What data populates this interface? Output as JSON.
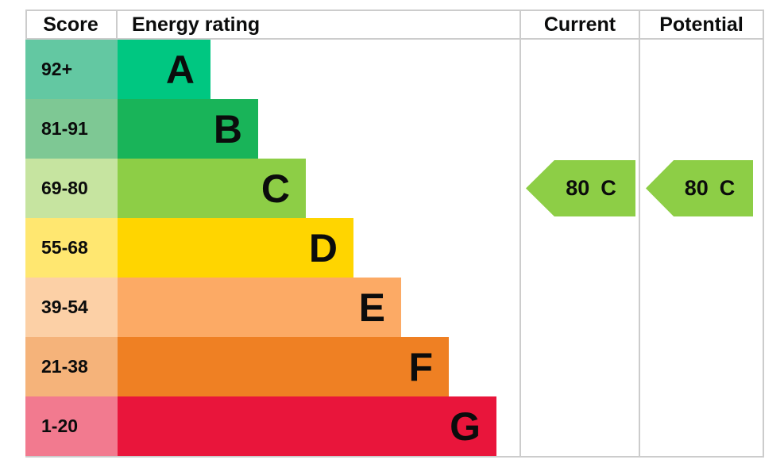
{
  "chart_data": {
    "type": "bar",
    "columns": {
      "score": "Score",
      "rating": "Energy rating",
      "current": "Current",
      "potential": "Potential"
    },
    "bands": [
      {
        "letter": "A",
        "score_range": "92+",
        "color": "#00c781",
        "score_color": "#63c8a2",
        "relative_length": 1
      },
      {
        "letter": "B",
        "score_range": "81-91",
        "color": "#19b459",
        "score_color": "#7ec894",
        "relative_length": 2
      },
      {
        "letter": "C",
        "score_range": "69-80",
        "color": "#8dce46",
        "score_color": "#c6e4a0",
        "relative_length": 3
      },
      {
        "letter": "D",
        "score_range": "55-68",
        "color": "#ffd500",
        "score_color": "#ffe770",
        "relative_length": 4
      },
      {
        "letter": "E",
        "score_range": "39-54",
        "color": "#fcaa65",
        "score_color": "#fcd0a6",
        "relative_length": 5
      },
      {
        "letter": "F",
        "score_range": "21-38",
        "color": "#ef8023",
        "score_color": "#f5b37a",
        "relative_length": 6
      },
      {
        "letter": "G",
        "score_range": "1-20",
        "color": "#e9153b",
        "score_color": "#f27a8f",
        "relative_length": 7
      }
    ],
    "current": {
      "value": "80",
      "band": "C",
      "color": "#8dce46"
    },
    "potential": {
      "value": "80",
      "band": "C",
      "color": "#8dce46"
    }
  },
  "colors": {
    "border": "#cccccc",
    "text": "#0b0c0c",
    "background": "#ffffff"
  }
}
